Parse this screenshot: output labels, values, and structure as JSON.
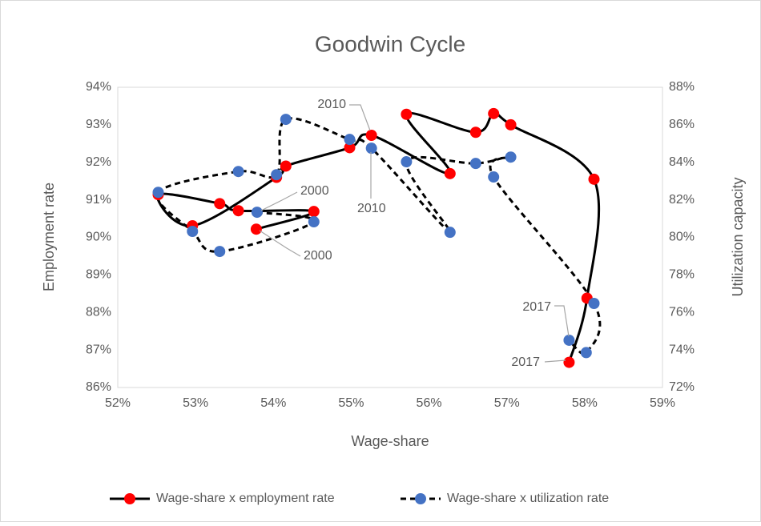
{
  "chart_data": {
    "type": "scatter-smooth",
    "title": "Goodwin Cycle",
    "xlabel": "Wage-share",
    "ylabel": "Employment rate",
    "y2label": "Utilization capacity",
    "xlim": [
      52,
      59
    ],
    "xticks": [
      {
        "value": 52,
        "label": "52%"
      },
      {
        "value": 53,
        "label": "53%"
      },
      {
        "value": 54,
        "label": "54%"
      },
      {
        "value": 55,
        "label": "55%"
      },
      {
        "value": 56,
        "label": "56%"
      },
      {
        "value": 57,
        "label": "57%"
      },
      {
        "value": 58,
        "label": "58%"
      },
      {
        "value": 59,
        "label": "59%"
      }
    ],
    "ylim": [
      86,
      94
    ],
    "yticks": [
      {
        "value": 86,
        "label": "86%"
      },
      {
        "value": 87,
        "label": "87%"
      },
      {
        "value": 88,
        "label": "88%"
      },
      {
        "value": 89,
        "label": "89%"
      },
      {
        "value": 90,
        "label": "90%"
      },
      {
        "value": 91,
        "label": "91%"
      },
      {
        "value": 92,
        "label": "92%"
      },
      {
        "value": 93,
        "label": "93%"
      },
      {
        "value": 94,
        "label": "94%"
      }
    ],
    "y2lim": [
      72,
      88
    ],
    "y2ticks": [
      {
        "value": 72,
        "label": "72%"
      },
      {
        "value": 74,
        "label": "74%"
      },
      {
        "value": 76,
        "label": "76%"
      },
      {
        "value": 78,
        "label": "78%"
      },
      {
        "value": 80,
        "label": "80%"
      },
      {
        "value": 82,
        "label": "82%"
      },
      {
        "value": 84,
        "label": "84%"
      },
      {
        "value": 86,
        "label": "86%"
      },
      {
        "value": 88,
        "label": "88%"
      }
    ],
    "series": [
      {
        "name": "Wage-share x employment rate",
        "color": "#ff0000",
        "line_color": "#000000",
        "dash": false,
        "x": [
          53.78,
          54.52,
          53.55,
          53.31,
          52.52,
          52.96,
          54.04,
          54.16,
          54.98,
          55.26,
          56.27,
          55.71,
          56.6,
          56.83,
          57.05,
          58.12,
          58.03,
          57.8
        ],
        "values": [
          90.22,
          90.69,
          90.71,
          90.9,
          91.14,
          90.31,
          91.6,
          91.9,
          92.39,
          92.72,
          91.7,
          93.28,
          92.8,
          93.3,
          93.0,
          91.55,
          88.38,
          86.67
        ]
      },
      {
        "name": "Wage-share x utilization rate",
        "color": "#4472c4",
        "line_color": "#000000",
        "dash": true,
        "axis": "y2",
        "x": [
          53.79,
          54.52,
          53.31,
          52.96,
          52.52,
          53.55,
          54.04,
          54.16,
          54.98,
          55.26,
          56.27,
          55.71,
          56.6,
          57.05,
          56.83,
          58.12,
          58.02,
          57.8
        ],
        "values": [
          81.34,
          80.83,
          79.25,
          80.32,
          82.4,
          83.51,
          83.34,
          86.29,
          85.22,
          84.75,
          80.27,
          84.03,
          83.94,
          84.28,
          83.22,
          76.48,
          73.86,
          74.52
        ]
      }
    ],
    "annotations": [
      "2000",
      "2000",
      "2010",
      "2010",
      "2017",
      "2017"
    ]
  }
}
